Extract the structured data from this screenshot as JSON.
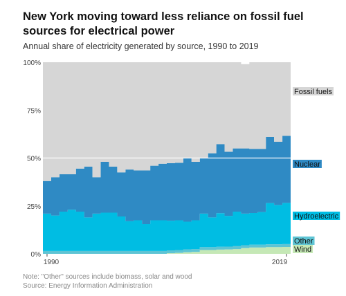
{
  "title": "New York moving toward less reliance on fossil fuel sources for electrical power",
  "subtitle": "Annual share of electricity generated by source, 1990 to 2019",
  "note": "Note: \"Other\" sources include biomass, solar and wood",
  "source": "Source: Energy Information Administration",
  "chart_data": {
    "type": "area",
    "stacked": true,
    "x": [
      1990,
      1991,
      1992,
      1993,
      1994,
      1995,
      1996,
      1997,
      1998,
      1999,
      2000,
      2001,
      2002,
      2003,
      2004,
      2005,
      2006,
      2007,
      2008,
      2009,
      2010,
      2011,
      2012,
      2013,
      2014,
      2015,
      2016,
      2017,
      2018,
      2019
    ],
    "x_tick_labels": [
      "1990",
      "2019"
    ],
    "y_tick_labels": [
      "100%",
      "75%",
      "50%",
      "25%",
      "0%"
    ],
    "ylim": [
      0,
      100
    ],
    "grid": true,
    "legend": "direct labels at right",
    "series": [
      {
        "name": "Wind",
        "color": "#c5e8b6",
        "values": [
          0,
          0,
          0,
          0,
          0,
          0,
          0,
          0,
          0,
          0,
          0,
          0,
          0,
          0,
          0,
          0.3,
          0.5,
          0.8,
          1.0,
          2.0,
          2.0,
          2.2,
          2.3,
          2.5,
          3.0,
          3.3,
          3.3,
          3.5,
          3.5,
          3.6
        ]
      },
      {
        "name": "Other",
        "color": "#5ec4d4",
        "values": [
          1.5,
          1.5,
          1.5,
          1.5,
          1.5,
          1.5,
          1.5,
          1.5,
          1.5,
          1.5,
          1.5,
          1.5,
          1.5,
          1.5,
          1.5,
          1.5,
          1.5,
          1.5,
          1.5,
          1.5,
          1.5,
          1.5,
          1.5,
          1.5,
          1.5,
          1.5,
          1.5,
          1.5,
          1.5,
          1.5
        ]
      },
      {
        "name": "Hydroelectric",
        "color": "#00bde3",
        "values": [
          19.5,
          18.5,
          20.5,
          21.5,
          20.5,
          17.5,
          19.5,
          20,
          20,
          18,
          15.5,
          16,
          14,
          16,
          16,
          15.5,
          15.5,
          14.5,
          15,
          17.5,
          15.5,
          17.5,
          16,
          18,
          16.5,
          16.5,
          17,
          21.5,
          20.5,
          21.5
        ]
      },
      {
        "name": "Nuclear",
        "color": "#2f8ac4",
        "values": [
          17,
          20,
          19.5,
          18.5,
          22.5,
          26.5,
          19,
          26.5,
          24,
          23,
          27,
          26,
          28,
          28.5,
          29.5,
          30,
          30,
          33,
          30.5,
          29,
          33.5,
          36,
          33.5,
          33,
          34,
          33.5,
          33,
          34.5,
          33,
          35
        ]
      },
      {
        "name": "Fossil fuels",
        "color": "#d6d6d6",
        "values": [
          62,
          60,
          58.5,
          58.5,
          55.5,
          54.5,
          60,
          52,
          54.5,
          57.5,
          56,
          56.5,
          56.5,
          54,
          53,
          52.7,
          52.5,
          50.2,
          52,
          50,
          47.5,
          42.8,
          46.7,
          45,
          44,
          45.2,
          45.2,
          39,
          41.5,
          38.4
        ]
      }
    ],
    "reference_line": 50
  },
  "colors": {
    "background": "#ffffff",
    "grid": "#ffffff",
    "axis_text": "#444444"
  }
}
